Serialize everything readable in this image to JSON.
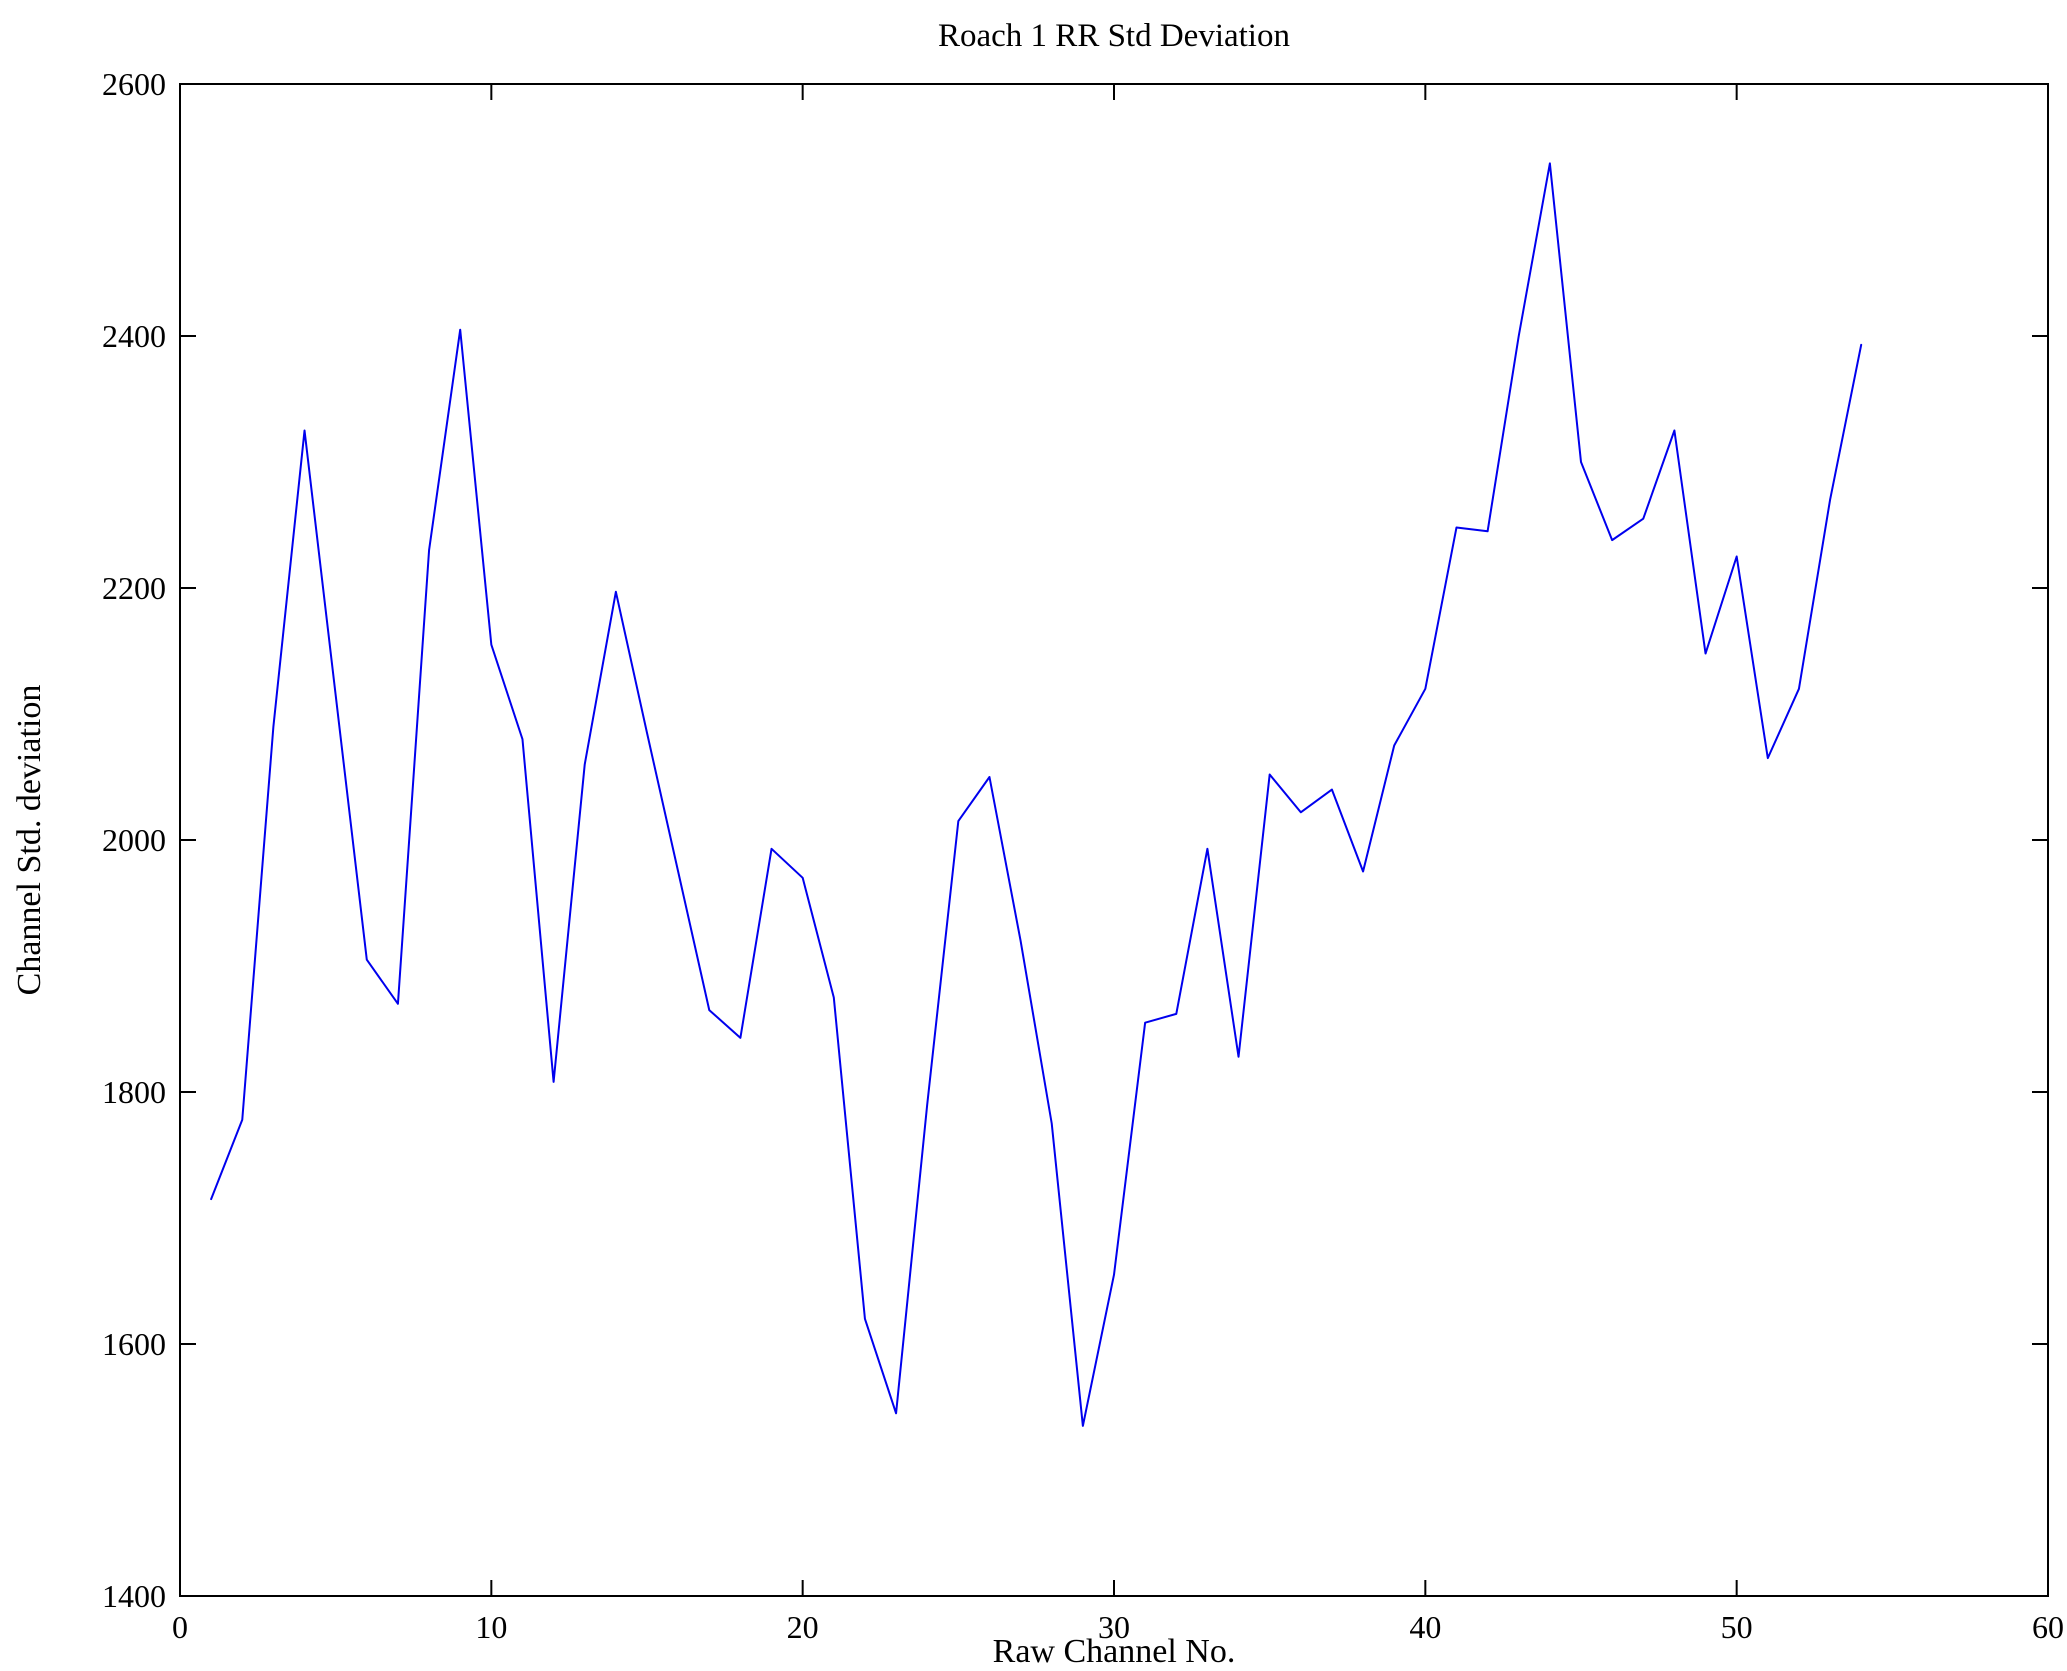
{
  "chart_data": {
    "type": "line",
    "title": "Roach 1 RR Std Deviation",
    "xlabel": "Raw Channel No.",
    "ylabel": "Channel Std. deviation",
    "xlim": [
      0,
      60
    ],
    "ylim": [
      1400,
      2600
    ],
    "xticks": [
      0,
      10,
      20,
      30,
      40,
      50,
      60
    ],
    "yticks": [
      1400,
      1600,
      1800,
      2000,
      2200,
      2400,
      2600
    ],
    "grid": false,
    "legend": "none",
    "line_color": "#0000ee",
    "background_color": "#ffffff",
    "axis_color": "#000000",
    "series_name": "Channel Std deviation",
    "x": [
      1,
      2,
      3,
      4,
      5,
      6,
      7,
      8,
      9,
      10,
      11,
      12,
      13,
      14,
      15,
      16,
      17,
      18,
      19,
      20,
      21,
      22,
      23,
      24,
      25,
      26,
      27,
      28,
      29,
      30,
      31,
      32,
      33,
      34,
      35,
      36,
      37,
      38,
      39,
      40,
      41,
      42,
      43,
      44,
      45,
      46,
      47,
      48,
      49,
      50,
      51,
      52,
      53,
      54
    ],
    "y": [
      1715,
      1778,
      2090,
      2325,
      2115,
      1905,
      1870,
      2230,
      2405,
      2155,
      2080,
      1808,
      2060,
      2197,
      2085,
      1975,
      1865,
      1843,
      1993,
      1970,
      1875,
      1620,
      1545,
      1790,
      2015,
      2050,
      1920,
      1775,
      1535,
      1655,
      1855,
      1862,
      1993,
      1828,
      2052,
      2022,
      2040,
      1975,
      2075,
      2120,
      2248,
      2245,
      2400,
      2537,
      2300,
      2238,
      2255,
      2325,
      2148,
      2225,
      2065,
      2120,
      2270,
      2393
    ]
  }
}
